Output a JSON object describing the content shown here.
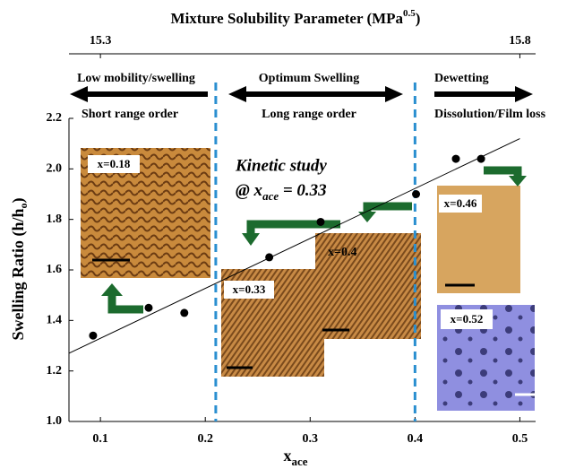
{
  "chart_data": {
    "type": "scatter",
    "top_axis_label": "Mixture Solubility Parameter (MPa",
    "top_axis_label_sup": "0.5",
    "top_axis_label_end": ")",
    "y_label": "Swelling Ratio (h/h",
    "y_label_sub": "o",
    "y_label_end": ")",
    "x_label": "x",
    "x_label_sub": "ace",
    "x": [
      0.093,
      0.146,
      0.18,
      0.261,
      0.31,
      0.401,
      0.439,
      0.463
    ],
    "values": [
      1.34,
      1.45,
      1.43,
      1.65,
      1.79,
      1.9,
      2.04,
      2.04
    ],
    "color": "#000000",
    "trend": {
      "x": [
        0.07,
        0.5
      ],
      "y": [
        1.27,
        2.12
      ]
    },
    "boundaries": [
      0.21,
      0.4
    ],
    "xlim": [
      0.07,
      0.515
    ],
    "xticks": [
      0.1,
      0.2,
      0.3,
      0.4,
      0.5
    ],
    "ylim": [
      1.0,
      2.2
    ],
    "yticks": [
      {
        "value": 1.0,
        "label": "1.0"
      },
      1.2,
      1.4,
      1.6,
      1.8,
      {
        "value": 2.0,
        "label": "2.0"
      },
      2.2
    ],
    "x2lim": [
      15.2625,
      15.81875
    ],
    "x2ticks": [
      15.3,
      15.8
    ],
    "regions": [
      {
        "title": "Low mobility/swelling",
        "subtitle": "Short range order"
      },
      {
        "title": "Optimum Swelling",
        "subtitle": "Long range order"
      },
      {
        "title": "Dewetting",
        "subtitle": "Dissolution/Film loss"
      }
    ],
    "kinetic": {
      "title": "Kinetic study",
      "prefix": "@ x",
      "sub": "ace",
      "suffix": " = 0.33"
    },
    "insets": [
      "x=0.18",
      "x=0.33",
      "x=0.4",
      "x=0.46",
      "x=0.52"
    ]
  }
}
